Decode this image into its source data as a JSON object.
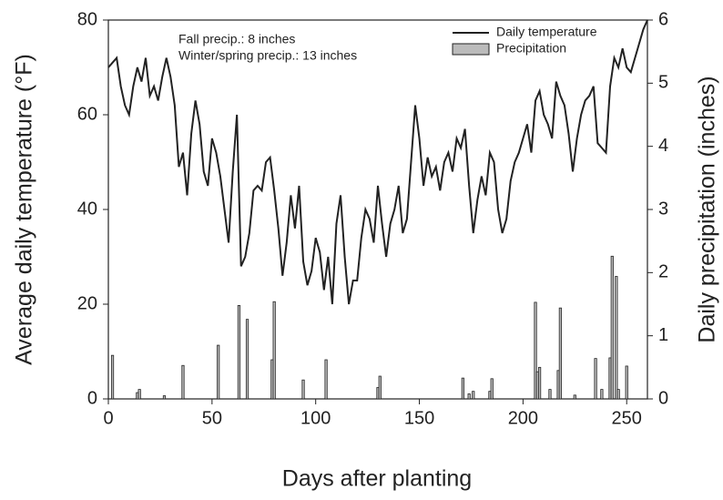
{
  "chart_data": {
    "type": "line-bar",
    "annotations": [
      "Fall precip.: 8 inches",
      "Winter/spring precip.: 13 inches"
    ],
    "xlabel": "Days after planting",
    "ylabel": "Average daily temperature (°F)",
    "y2label": "Daily precipitation (inches)",
    "xlim": [
      0,
      260
    ],
    "xticks": [
      0,
      50,
      100,
      150,
      200,
      250
    ],
    "ylim": [
      0,
      80
    ],
    "yticks": [
      0,
      20,
      40,
      60,
      80
    ],
    "y2lim": [
      0,
      6
    ],
    "y2ticks": [
      0,
      1,
      2,
      3,
      4,
      5,
      6
    ],
    "legend": "upper right",
    "series": [
      {
        "name": "Daily temperature",
        "color": "#222222",
        "kind": "line",
        "x": [
          0,
          2,
          4,
          6,
          8,
          10,
          12,
          14,
          16,
          18,
          20,
          22,
          24,
          26,
          28,
          30,
          32,
          34,
          36,
          38,
          40,
          42,
          44,
          46,
          48,
          50,
          52,
          54,
          56,
          58,
          60,
          62,
          64,
          66,
          68,
          70,
          72,
          74,
          76,
          78,
          80,
          82,
          84,
          86,
          88,
          90,
          92,
          94,
          96,
          98,
          100,
          102,
          104,
          106,
          108,
          110,
          112,
          114,
          116,
          118,
          120,
          122,
          124,
          126,
          128,
          130,
          132,
          134,
          136,
          138,
          140,
          142,
          144,
          146,
          148,
          150,
          152,
          154,
          156,
          158,
          160,
          162,
          164,
          166,
          168,
          170,
          172,
          174,
          176,
          178,
          180,
          182,
          184,
          186,
          188,
          190,
          192,
          194,
          196,
          198,
          200,
          202,
          204,
          206,
          208,
          210,
          212,
          214,
          216,
          218,
          220,
          222,
          224,
          226,
          228,
          230,
          232,
          234,
          236,
          238,
          240,
          242,
          244,
          246,
          248,
          250,
          252,
          254,
          256,
          258,
          260
        ],
        "values": [
          70,
          71,
          72,
          66,
          62,
          60,
          66,
          70,
          67,
          72,
          64,
          66,
          63,
          68,
          72,
          68,
          62,
          49,
          52,
          43,
          56,
          63,
          58,
          48,
          45,
          55,
          52,
          47,
          40,
          33,
          48,
          60,
          28,
          30,
          35,
          44,
          45,
          44,
          50,
          51,
          44,
          36,
          26,
          33,
          43,
          36,
          45,
          29,
          24,
          27,
          34,
          31,
          23,
          30,
          20,
          37,
          43,
          30,
          20,
          25,
          25,
          34,
          40,
          38,
          33,
          45,
          37,
          30,
          37,
          40,
          45,
          35,
          38,
          50,
          62,
          55,
          45,
          51,
          47,
          49,
          44,
          50,
          52,
          48,
          55,
          53,
          57,
          45,
          35,
          42,
          47,
          43,
          52,
          50,
          40,
          35,
          38,
          46,
          50,
          52,
          55,
          58,
          52,
          63,
          65,
          60,
          58,
          55,
          67,
          64,
          62,
          56,
          48,
          55,
          60,
          63,
          64,
          66,
          54,
          53,
          52,
          66,
          72,
          70,
          74,
          70,
          69,
          72,
          75,
          78,
          80
        ]
      },
      {
        "name": "Precipitation",
        "color": "#bbbbbb",
        "kind": "bar",
        "axis": "y2",
        "x": [
          2,
          14,
          15,
          27,
          36,
          53,
          63,
          67,
          79,
          80,
          94,
          105,
          130,
          131,
          171,
          174,
          176,
          184,
          185,
          206,
          207,
          208,
          213,
          217,
          218,
          225,
          235,
          238,
          242,
          243,
          245,
          246,
          250
        ],
        "values": [
          0.69,
          0.1,
          0.15,
          0.05,
          0.53,
          0.85,
          1.48,
          1.26,
          0.62,
          1.54,
          0.3,
          0.62,
          0.18,
          0.36,
          0.33,
          0.08,
          0.12,
          0.12,
          0.32,
          1.53,
          0.43,
          0.5,
          0.15,
          0.45,
          1.44,
          0.06,
          0.64,
          0.15,
          0.65,
          2.26,
          1.94,
          0.15,
          0.52
        ]
      }
    ]
  }
}
